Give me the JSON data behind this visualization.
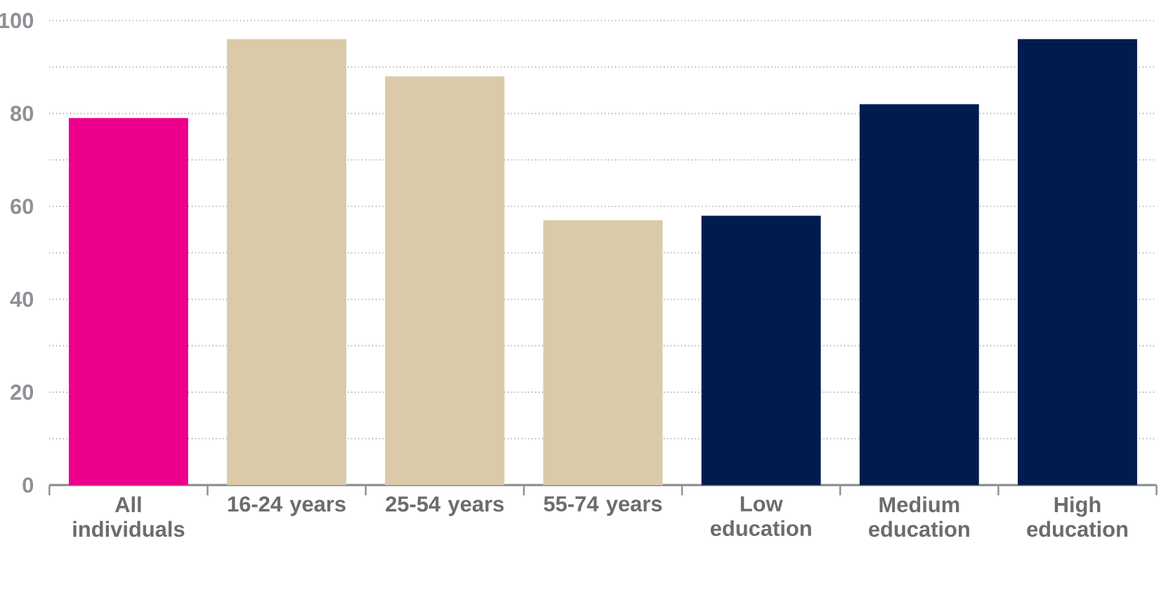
{
  "chart_data": {
    "type": "bar",
    "categories": [
      "All individuals",
      "16-24 years",
      "25-54 years",
      "55-74 years",
      "Low education",
      "Medium education",
      "High education"
    ],
    "values": [
      79,
      96,
      88,
      57,
      58,
      82,
      96
    ],
    "colors": [
      "#ec008c",
      "#dacaa8",
      "#dacaa8",
      "#dacaa8",
      "#001c4e",
      "#001c4e",
      "#001c4e"
    ],
    "ylim": [
      0,
      100
    ],
    "yticks": [
      0,
      {
        "value": 10,
        "label": null
      },
      20,
      {
        "value": 30,
        "label": null
      },
      40,
      {
        "value": 50,
        "label": null
      },
      60,
      {
        "value": 70,
        "label": null
      },
      80,
      {
        "value": 90,
        "label": null
      },
      100
    ],
    "grid": "y"
  }
}
